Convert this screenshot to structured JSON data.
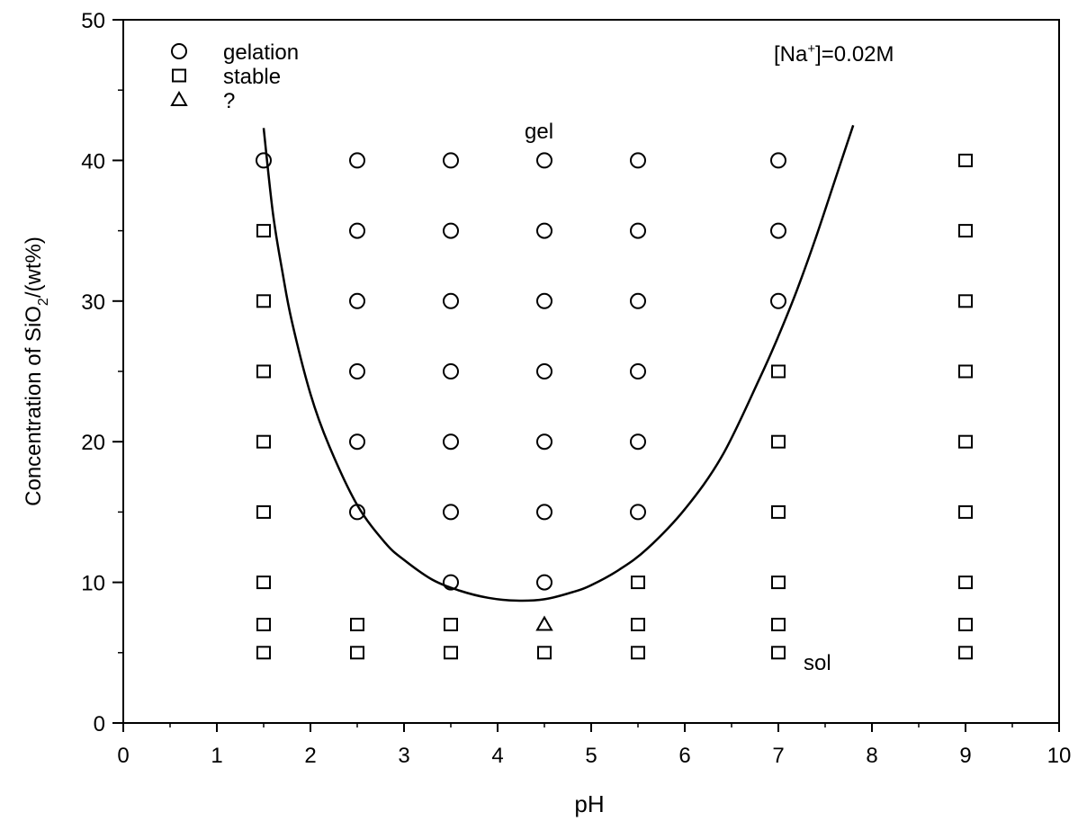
{
  "chart_data": {
    "type": "scatter",
    "xlabel": "pH",
    "ylabel_main": "Concentration of SiO",
    "ylabel_sub": "2",
    "ylabel_tail": "/(wt%)",
    "xlim": [
      0,
      10
    ],
    "ylim": [
      0,
      50
    ],
    "xticks": [
      "0",
      "1",
      "2",
      "3",
      "4",
      "5",
      "6",
      "7",
      "8",
      "9",
      "10"
    ],
    "yticks": [
      "0",
      "10",
      "20",
      "30",
      "40",
      "50"
    ],
    "grid": false,
    "legend_position": "top-left",
    "legend": [
      {
        "marker": "circle",
        "label": "gelation"
      },
      {
        "marker": "square",
        "label": "stable"
      },
      {
        "marker": "triangle",
        "label": "?"
      }
    ],
    "condition": {
      "prefix": "[Na",
      "sup": "+",
      "suffix": "]=0.02M"
    },
    "region_labels": {
      "upper": "gel",
      "lower": "sol"
    },
    "series": [
      {
        "marker": "circle",
        "points": [
          [
            1.5,
            40
          ],
          [
            2.5,
            40
          ],
          [
            2.5,
            35
          ],
          [
            2.5,
            30
          ],
          [
            2.5,
            25
          ],
          [
            2.5,
            20
          ],
          [
            2.5,
            15
          ],
          [
            3.5,
            40
          ],
          [
            3.5,
            35
          ],
          [
            3.5,
            30
          ],
          [
            3.5,
            25
          ],
          [
            3.5,
            20
          ],
          [
            3.5,
            15
          ],
          [
            3.5,
            10
          ],
          [
            4.5,
            40
          ],
          [
            4.5,
            35
          ],
          [
            4.5,
            30
          ],
          [
            4.5,
            25
          ],
          [
            4.5,
            20
          ],
          [
            4.5,
            15
          ],
          [
            4.5,
            10
          ],
          [
            5.5,
            40
          ],
          [
            5.5,
            35
          ],
          [
            5.5,
            30
          ],
          [
            5.5,
            25
          ],
          [
            5.5,
            20
          ],
          [
            5.5,
            15
          ],
          [
            7,
            40
          ],
          [
            7,
            35
          ],
          [
            7,
            30
          ]
        ]
      },
      {
        "marker": "square",
        "points": [
          [
            1.5,
            35
          ],
          [
            1.5,
            30
          ],
          [
            1.5,
            25
          ],
          [
            1.5,
            20
          ],
          [
            1.5,
            15
          ],
          [
            1.5,
            10
          ],
          [
            1.5,
            7
          ],
          [
            1.5,
            5
          ],
          [
            2.5,
            7
          ],
          [
            2.5,
            5
          ],
          [
            3.5,
            7
          ],
          [
            3.5,
            5
          ],
          [
            4.5,
            5
          ],
          [
            5.5,
            10
          ],
          [
            5.5,
            7
          ],
          [
            5.5,
            5
          ],
          [
            7,
            25
          ],
          [
            7,
            20
          ],
          [
            7,
            15
          ],
          [
            7,
            10
          ],
          [
            7,
            7
          ],
          [
            7,
            5
          ],
          [
            9,
            40
          ],
          [
            9,
            35
          ],
          [
            9,
            30
          ],
          [
            9,
            25
          ],
          [
            9,
            20
          ],
          [
            9,
            15
          ],
          [
            9,
            10
          ],
          [
            9,
            7
          ],
          [
            9,
            5
          ]
        ]
      },
      {
        "marker": "triangle",
        "points": [
          [
            4.5,
            7
          ]
        ]
      }
    ],
    "boundary_curve": [
      [
        1.5,
        42.3
      ],
      [
        1.6,
        36.2
      ],
      [
        1.7,
        32.1
      ],
      [
        1.8,
        28.6
      ],
      [
        2.0,
        23.4
      ],
      [
        2.2,
        19.7
      ],
      [
        2.5,
        15.5
      ],
      [
        2.8,
        12.8
      ],
      [
        3.0,
        11.6
      ],
      [
        3.3,
        10.2
      ],
      [
        3.6,
        9.4
      ],
      [
        3.9,
        8.9
      ],
      [
        4.2,
        8.7
      ],
      [
        4.5,
        8.8
      ],
      [
        4.8,
        9.3
      ],
      [
        5.0,
        9.8
      ],
      [
        5.3,
        10.9
      ],
      [
        5.6,
        12.4
      ],
      [
        6.0,
        15.2
      ],
      [
        6.4,
        19.0
      ],
      [
        6.8,
        24.5
      ],
      [
        7.0,
        27.5
      ],
      [
        7.2,
        30.8
      ],
      [
        7.4,
        34.5
      ],
      [
        7.6,
        38.5
      ],
      [
        7.8,
        42.5
      ]
    ]
  }
}
